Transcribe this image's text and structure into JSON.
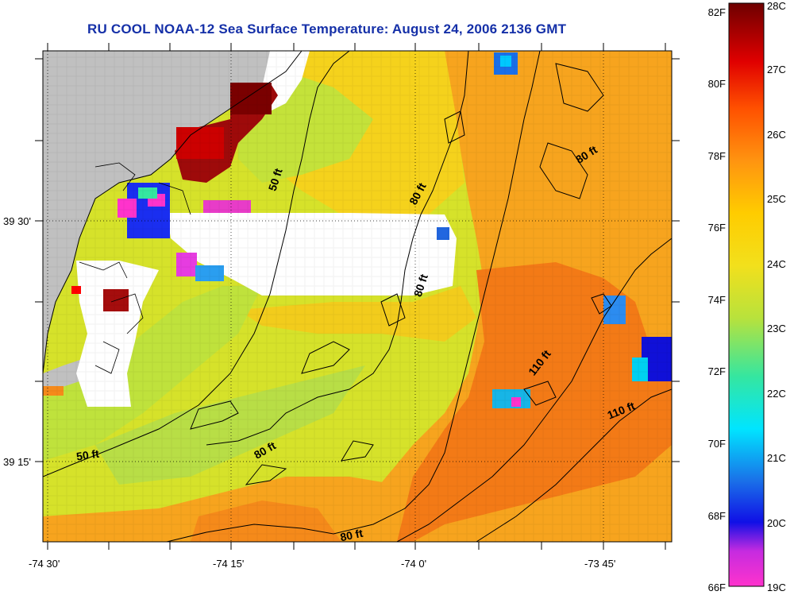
{
  "title": "RU COOL  NOAA-12  Sea Surface Temperature:  August 24, 2006 2136 GMT",
  "map": {
    "x_ticks": [
      "-74 30'",
      "-74 15'",
      "-74 0'",
      "-73 45'"
    ],
    "y_ticks": [
      "39 30'",
      "39 15'"
    ],
    "contour_labels": [
      "50 ft",
      "80 ft",
      "80 ft",
      "80 ft",
      "110 ft",
      "110 ft",
      "50 ft",
      "80 ft",
      "80 ft"
    ]
  },
  "colorbar": {
    "fahrenheit_labels": [
      "82F",
      "80F",
      "78F",
      "76F",
      "74F",
      "72F",
      "70F",
      "68F",
      "66F"
    ],
    "celsius_labels": [
      "28C",
      "27C",
      "26C",
      "25C",
      "24C",
      "23C",
      "22C",
      "21C",
      "20C",
      "19C"
    ],
    "colors": [
      "#ff33cc",
      "#8a1bd6",
      "#1010e6",
      "#00e5ff",
      "#35e6a0",
      "#d8ee20",
      "#ffd000",
      "#ff8c10",
      "#ff2a00",
      "#e00000",
      "#7a0000"
    ]
  }
}
